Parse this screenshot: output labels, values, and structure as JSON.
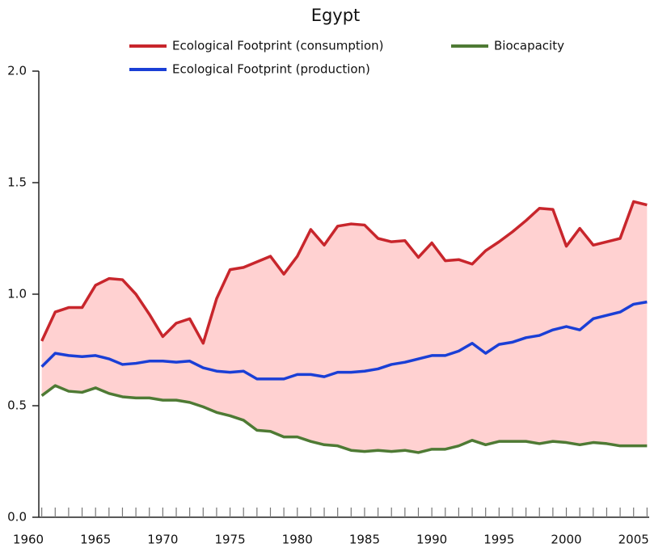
{
  "chart_data": {
    "type": "line",
    "title": "Egypt",
    "x": [
      1961,
      1962,
      1963,
      1964,
      1965,
      1966,
      1967,
      1968,
      1969,
      1970,
      1971,
      1972,
      1973,
      1974,
      1975,
      1976,
      1977,
      1978,
      1979,
      1980,
      1981,
      1982,
      1983,
      1984,
      1985,
      1986,
      1987,
      1988,
      1989,
      1990,
      1991,
      1992,
      1993,
      1994,
      1995,
      1996,
      1997,
      1998,
      1999,
      2000,
      2001,
      2002,
      2003,
      2004,
      2005,
      2006
    ],
    "series": [
      {
        "name": "Ecological Footprint (consumption)",
        "color": "#c8262c",
        "values": [
          0.79,
          0.92,
          0.94,
          0.94,
          1.04,
          1.07,
          1.065,
          1.0,
          0.91,
          0.81,
          0.87,
          0.89,
          0.78,
          0.98,
          1.11,
          1.12,
          1.145,
          1.17,
          1.09,
          1.17,
          1.29,
          1.22,
          1.305,
          1.315,
          1.31,
          1.25,
          1.235,
          1.24,
          1.165,
          1.23,
          1.15,
          1.155,
          1.135,
          1.195,
          1.235,
          1.28,
          1.33,
          1.385,
          1.38,
          1.215,
          1.295,
          1.22,
          1.235,
          1.25,
          1.415,
          1.4
        ]
      },
      {
        "name": "Ecological Footprint (production)",
        "color": "#1a3fd6",
        "values": [
          0.675,
          0.735,
          0.725,
          0.72,
          0.725,
          0.71,
          0.685,
          0.69,
          0.7,
          0.7,
          0.695,
          0.7,
          0.67,
          0.655,
          0.65,
          0.655,
          0.62,
          0.62,
          0.62,
          0.64,
          0.64,
          0.63,
          0.65,
          0.65,
          0.655,
          0.665,
          0.685,
          0.695,
          0.71,
          0.725,
          0.725,
          0.745,
          0.78,
          0.735,
          0.775,
          0.785,
          0.805,
          0.815,
          0.84,
          0.855,
          0.84,
          0.89,
          0.905,
          0.92,
          0.955,
          0.965
        ]
      },
      {
        "name": "Biocapacity",
        "color": "#4e7a34",
        "values": [
          0.545,
          0.59,
          0.565,
          0.56,
          0.58,
          0.555,
          0.54,
          0.535,
          0.535,
          0.525,
          0.525,
          0.515,
          0.495,
          0.47,
          0.455,
          0.435,
          0.39,
          0.385,
          0.36,
          0.36,
          0.34,
          0.325,
          0.32,
          0.3,
          0.295,
          0.3,
          0.295,
          0.3,
          0.29,
          0.305,
          0.305,
          0.32,
          0.345,
          0.325,
          0.34,
          0.34,
          0.34,
          0.33,
          0.34,
          0.335,
          0.325,
          0.335,
          0.33,
          0.32,
          0.32,
          0.32
        ]
      }
    ],
    "fill": {
      "between": [
        0,
        2
      ],
      "color": "#ffd1d1"
    },
    "xlim": [
      1960,
      2006.4
    ],
    "xticks": [
      1960,
      1965,
      1970,
      1975,
      1980,
      1985,
      1990,
      1995,
      2000,
      2005
    ],
    "ylim": [
      0,
      2
    ],
    "yticks": [
      {
        "value": 0,
        "label": "0.0"
      },
      {
        "value": 0.5,
        "label": "0.5"
      },
      {
        "value": 1,
        "label": "1.0"
      },
      {
        "value": 1.5,
        "label": "1.5"
      },
      {
        "value": 2,
        "label": "2.0"
      }
    ]
  }
}
